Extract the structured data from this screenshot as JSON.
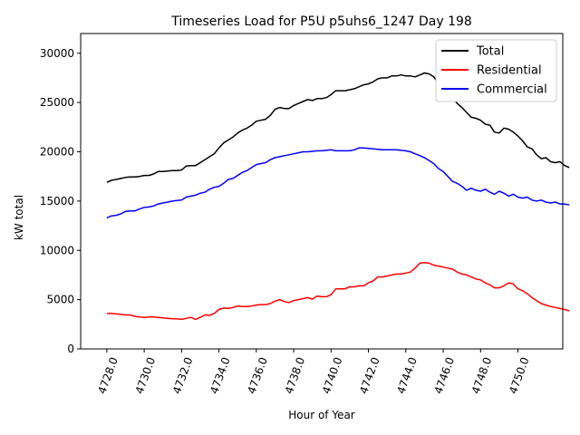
{
  "chart_data": {
    "type": "line",
    "title": "Timeseries Load for P5U p5uhs6_1247  Day 198",
    "xlabel": "Hour of Year",
    "ylabel": "kW total",
    "xlim": [
      4726.6,
      4752.4
    ],
    "ylim": [
      0,
      32000
    ],
    "xticks": [
      4728,
      4730,
      4732,
      4734,
      4736,
      4738,
      4740,
      4742,
      4744,
      4746,
      4748,
      4750
    ],
    "xtick_labels": [
      "4728.0",
      "4730.0",
      "4732.0",
      "4734.0",
      "4736.0",
      "4738.0",
      "4740.0",
      "4742.0",
      "4744.0",
      "4746.0",
      "4748.0",
      "4750.0"
    ],
    "yticks": [
      0,
      5000,
      10000,
      15000,
      20000,
      25000,
      30000
    ],
    "ytick_labels": [
      "0",
      "5000",
      "10000",
      "15000",
      "20000",
      "25000",
      "30000"
    ],
    "grid": false,
    "legend_position": "top-right",
    "x_start": 4728.0,
    "x_step": 0.25,
    "series": [
      {
        "name": "Total",
        "color": "#000000",
        "values": [
          16900,
          17100,
          17200,
          17300,
          17400,
          17450,
          17450,
          17500,
          17600,
          17600,
          17750,
          18000,
          18000,
          18050,
          18100,
          18100,
          18150,
          18550,
          18600,
          18600,
          18900,
          19200,
          19500,
          19800,
          20400,
          20900,
          21200,
          21500,
          21900,
          22200,
          22400,
          22700,
          23100,
          23200,
          23300,
          23700,
          24300,
          24500,
          24400,
          24400,
          24700,
          24900,
          25100,
          25300,
          25200,
          25400,
          25400,
          25500,
          25800,
          26200,
          26200,
          26200,
          26300,
          26400,
          26600,
          26800,
          26900,
          27100,
          27400,
          27500,
          27500,
          27700,
          27700,
          27800,
          27700,
          27700,
          27600,
          27800,
          28000,
          27900,
          27600,
          26900,
          26500,
          26000,
          25500,
          24900,
          24500,
          24000,
          23500,
          23400,
          23200,
          22800,
          22700,
          22000,
          21900,
          22400,
          22300,
          22000,
          21600,
          21100,
          20500,
          20300,
          19700,
          19300,
          19400,
          19000,
          18900,
          19000,
          18600,
          18400
        ]
      },
      {
        "name": "Residential",
        "color": "#ff0000",
        "values": [
          3600,
          3600,
          3550,
          3500,
          3450,
          3450,
          3300,
          3250,
          3200,
          3250,
          3250,
          3200,
          3150,
          3100,
          3050,
          3050,
          3000,
          3100,
          3200,
          3000,
          3200,
          3450,
          3400,
          3600,
          4000,
          4150,
          4100,
          4200,
          4350,
          4300,
          4300,
          4350,
          4450,
          4500,
          4500,
          4600,
          4850,
          5000,
          4800,
          4700,
          4900,
          5000,
          5100,
          5200,
          5050,
          5350,
          5300,
          5300,
          5500,
          6100,
          6100,
          6100,
          6300,
          6300,
          6400,
          6400,
          6700,
          6900,
          7300,
          7300,
          7400,
          7500,
          7600,
          7600,
          7700,
          7800,
          8200,
          8700,
          8750,
          8700,
          8500,
          8400,
          8300,
          8200,
          8100,
          7800,
          7600,
          7500,
          7300,
          7100,
          7000,
          6700,
          6500,
          6200,
          6200,
          6400,
          6700,
          6600,
          6100,
          5900,
          5600,
          5200,
          4900,
          4600,
          4450,
          4300,
          4200,
          4100,
          4000,
          3850
        ]
      },
      {
        "name": "Commercial",
        "color": "#0000ff",
        "values": [
          13300,
          13500,
          13550,
          13700,
          13950,
          14000,
          14000,
          14200,
          14350,
          14400,
          14500,
          14700,
          14800,
          14900,
          15000,
          15050,
          15100,
          15400,
          15500,
          15600,
          15800,
          15900,
          16200,
          16400,
          16500,
          16800,
          17200,
          17300,
          17600,
          17900,
          18100,
          18400,
          18700,
          18800,
          18900,
          19200,
          19400,
          19500,
          19600,
          19700,
          19800,
          19900,
          20000,
          20000,
          20050,
          20100,
          20100,
          20150,
          20200,
          20100,
          20100,
          20100,
          20100,
          20200,
          20400,
          20400,
          20350,
          20300,
          20250,
          20200,
          20200,
          20200,
          20200,
          20150,
          20100,
          20000,
          19800,
          19600,
          19400,
          19100,
          18800,
          18300,
          18000,
          17500,
          17000,
          16800,
          16500,
          16100,
          16300,
          16100,
          16000,
          16200,
          15900,
          15700,
          16000,
          15800,
          15500,
          15700,
          15400,
          15300,
          15400,
          15100,
          15000,
          15100,
          14900,
          14800,
          14900,
          14700,
          14700,
          14600
        ]
      }
    ]
  }
}
